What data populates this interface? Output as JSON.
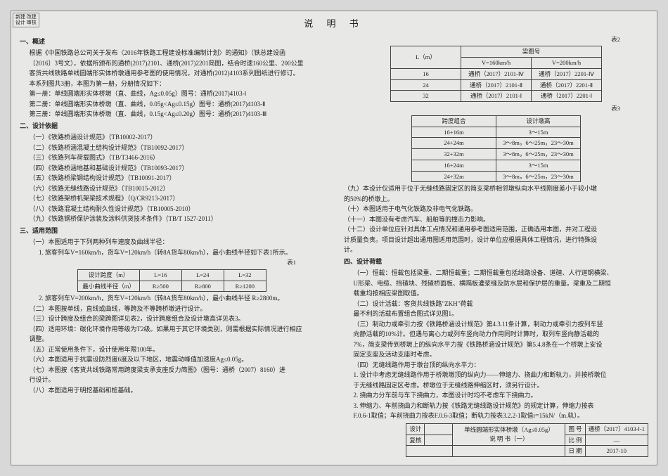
{
  "corner": {
    "l1": "新建 改建",
    "l2": "设计 审核"
  },
  "title": "说 明 书",
  "left": {
    "s1h": "一、概述",
    "s1": [
      "根据《中国铁路总公司关于发布〈2016年铁路工程建设标准编制计划〉的通知》（铁总建设函",
      "〔2016〕3号文），依据所颁布的通桥(2017)2101、通桥(2017)2201简图，结合时速160公里、200公里",
      "客货共线铁路单线圆端形实体桥墩通用参考图的使用情况，对通桥(2012)4103系列图纸进行修订。",
      "本系列图共3册，本图为第一册，分册情况如下：",
      "第一册：单线圆端形实体桥墩（直、曲线，Ag≤0.05g）图号：通桥(2017)4103-Ⅰ",
      "第二册：单线圆端形实体桥墩（直、曲线，0.05g<Ag≤0.15g）图号：通桥(2017)4103-Ⅱ",
      "第三册：单线圆端形实体桥墩（直、曲线，0.15g<Ag≤0.20g）图号：通桥(2017)4103-Ⅲ"
    ],
    "s2h": "二、设计依据",
    "s2": [
      "（一）《铁路桥涵设计规范》（TB10002-2017）",
      "（二）《铁路桥涵混凝土结构设计规范》（TB10092-2017）",
      "（三）《铁路列车荷载图式》（TB/T3466-2016）",
      "（四）《铁路桥涵地基和基础设计规范》（TB10093-2017）",
      "（五）《铁路桥梁钢结构设计规范》（TB10091-2017）",
      "（六）《铁路无缝线路设计规范》（TB10015-2012）",
      "（七）《铁路架桥机架梁技术规程》（Q/CR9213-2017）",
      "（八）《铁路混凝土结构耐久性设计规范》（TB10005-2010）",
      "（九）《铁路钢桥保护涂装及涂料供货技术条件》（TB/T 1527-2011）"
    ],
    "s3h": "三、适用范围",
    "s3a": "（一）本图适用于下列两种列车速度及曲线半径：",
    "s3b": "1. 旅客列车V=160km/h，货车V=120km/h（转8A货车80km/h），最小曲线半径如下表1所示。",
    "t1lbl": "表1",
    "t1": {
      "r1": [
        "设计跨度（m）",
        "L=16",
        "L=24",
        "L=32"
      ],
      "r2": [
        "最小曲线半径（m）",
        "R≥500",
        "R≥800",
        "R≥1200"
      ]
    },
    "s3c": "2. 旅客列车V=200km/h，货车V=120km/h（转8A货车80km/h），最小曲线半径 R≥2800m。",
    "s3": [
      "（二）本图按单线，直线或曲线，等跨及不等跨桥墩进行设计。",
      "（三）设计跨度及组合的梁跨图详见表2，设计跨度组合及设计墩高详见表3。",
      "（四）适用环境：碳化环境作用等级为T2级。如果用于其它环境类别，则需根据实际情况进行相应",
      "调整。",
      "（五）正常使用条件下，设计使用年限100年。",
      "（六）本图适用于抗震设防烈度6度及以下地区，地震动峰值加速度Ag≤0.05g。",
      "（七）本图按《客货共线铁路常用跨度梁支承支座反力简图》（图号：通桥（2007）8160）进",
      "行设计。",
      "（八）本图适用于明挖基础和桩基础。"
    ]
  },
  "right": {
    "t2lbl": "表2",
    "t2": {
      "h": [
        "设计跨度",
        "梁图号"
      ],
      "h2": [
        "L（m）",
        "V=160km/h",
        "V=200km/h"
      ],
      "rows": [
        [
          "16",
          "通桥（2017）2101-Ⅳ",
          "通桥（2017）2201-Ⅳ"
        ],
        [
          "24",
          "通桥（2017）2101-Ⅱ",
          "通桥（2017）2201-Ⅱ"
        ],
        [
          "32",
          "通桥（2017）2101-Ⅰ",
          "通桥（2017）2201-Ⅰ"
        ]
      ]
    },
    "t3lbl": "表3",
    "t3": {
      "h": [
        "跨度组合",
        "设计墩高"
      ],
      "rows": [
        [
          "16+16m",
          "3～15m"
        ],
        [
          "24+24m",
          "3～8m，6～25m，23～30m"
        ],
        [
          "32+32m",
          "3～8m，6～25m，23～30m"
        ],
        [
          "16+24m",
          "3～15m"
        ],
        [
          "24+32m",
          "3～8m，6～25m，23～30m"
        ]
      ]
    },
    "paras": [
      "（九）本设计仅适用于位于无缝线路固定区的简支梁桥相邻墩纵向水平线刚度差小于较小墩",
      "的50%的桥墩上。",
      "（十）本图适用于电气化铁路及非电气化铁路。",
      "（十一）本图没有考虑汽车、船舶等的撞击力影响。",
      "（十二）设计单位应针对具体工点情况和通用参考图适用范围，正确选用本图，并对工程设",
      "计质量负责。项目设计超出通用图适用范围时，设计单位应根据具体工程情况，进行特殊设",
      "计。"
    ],
    "s4h": "四、设计荷载",
    "s4": [
      "（一）恒载：恒载包括梁重、二期恒载重；二期恒载重包括线路设备、道碴、人行道钢横梁、",
      "U形梁、电缆、挡碴块、残碴桥面板、横隔板灌浆缝及防水层和保护层的重量。梁重及二期恒",
      "载重均按相应梁图取值。",
      "（二）设计活载：客货共线铁路\"ZKH\"荷载",
      "最不利的活载布置组合图式详见图1。",
      "（三）制动力或牵引力按《铁路桥涵设计规范》第4.3.11条计算，制动力或牵引力按列车竖",
      "向静活载的10%计。但遇与离心力或列车竖向动力作用同时计算时，取列车竖向静活载的",
      "7%，简支梁传到桥墩上的纵向水平力按《铁路桥涵设计规范》第5.4.8条在一个桥墩上安设",
      "固定支座及活动支座时考虑。",
      "（四）无缝线路作用于墩台顶的纵向水平力：",
      "1. 设计中考虑无缝线路作用于桥墩墩顶的纵向力——伸缩力、挠曲力和断轨力，并按桥墩位",
      "于无缝线路固定区考虑。桥墩位于无缝线路伸缩区时，须另行设计。",
      "2. 挠曲力分车前与车下挠曲力，本图设计时均不考虑车下挠曲力。",
      "3. 伸缩力、车前挠曲力和断轨力按《铁路无缝线路设计规范》的规定计算，伸缩力按表",
      "F.0.6-1取值；车前挠曲力按表F.0.6-3取值；断轨力按表3.2.2-1取值r=15kN/（m.轨）。"
    ]
  },
  "tb": {
    "c1a": "设计",
    "c1b": "复核",
    "c2a": "审核",
    "c2b": "审核签",
    "mid1": "单线圆端形实体桥墩（Ag≤0.05g）",
    "mid2": "说 明 书（一）",
    "r1a": "图 号",
    "r1b": "通桥〔2017〕4103-Ⅰ-1",
    "r2a": "比 例",
    "r2b": "—",
    "r3a": "日 期",
    "r3b": "2017-10"
  }
}
